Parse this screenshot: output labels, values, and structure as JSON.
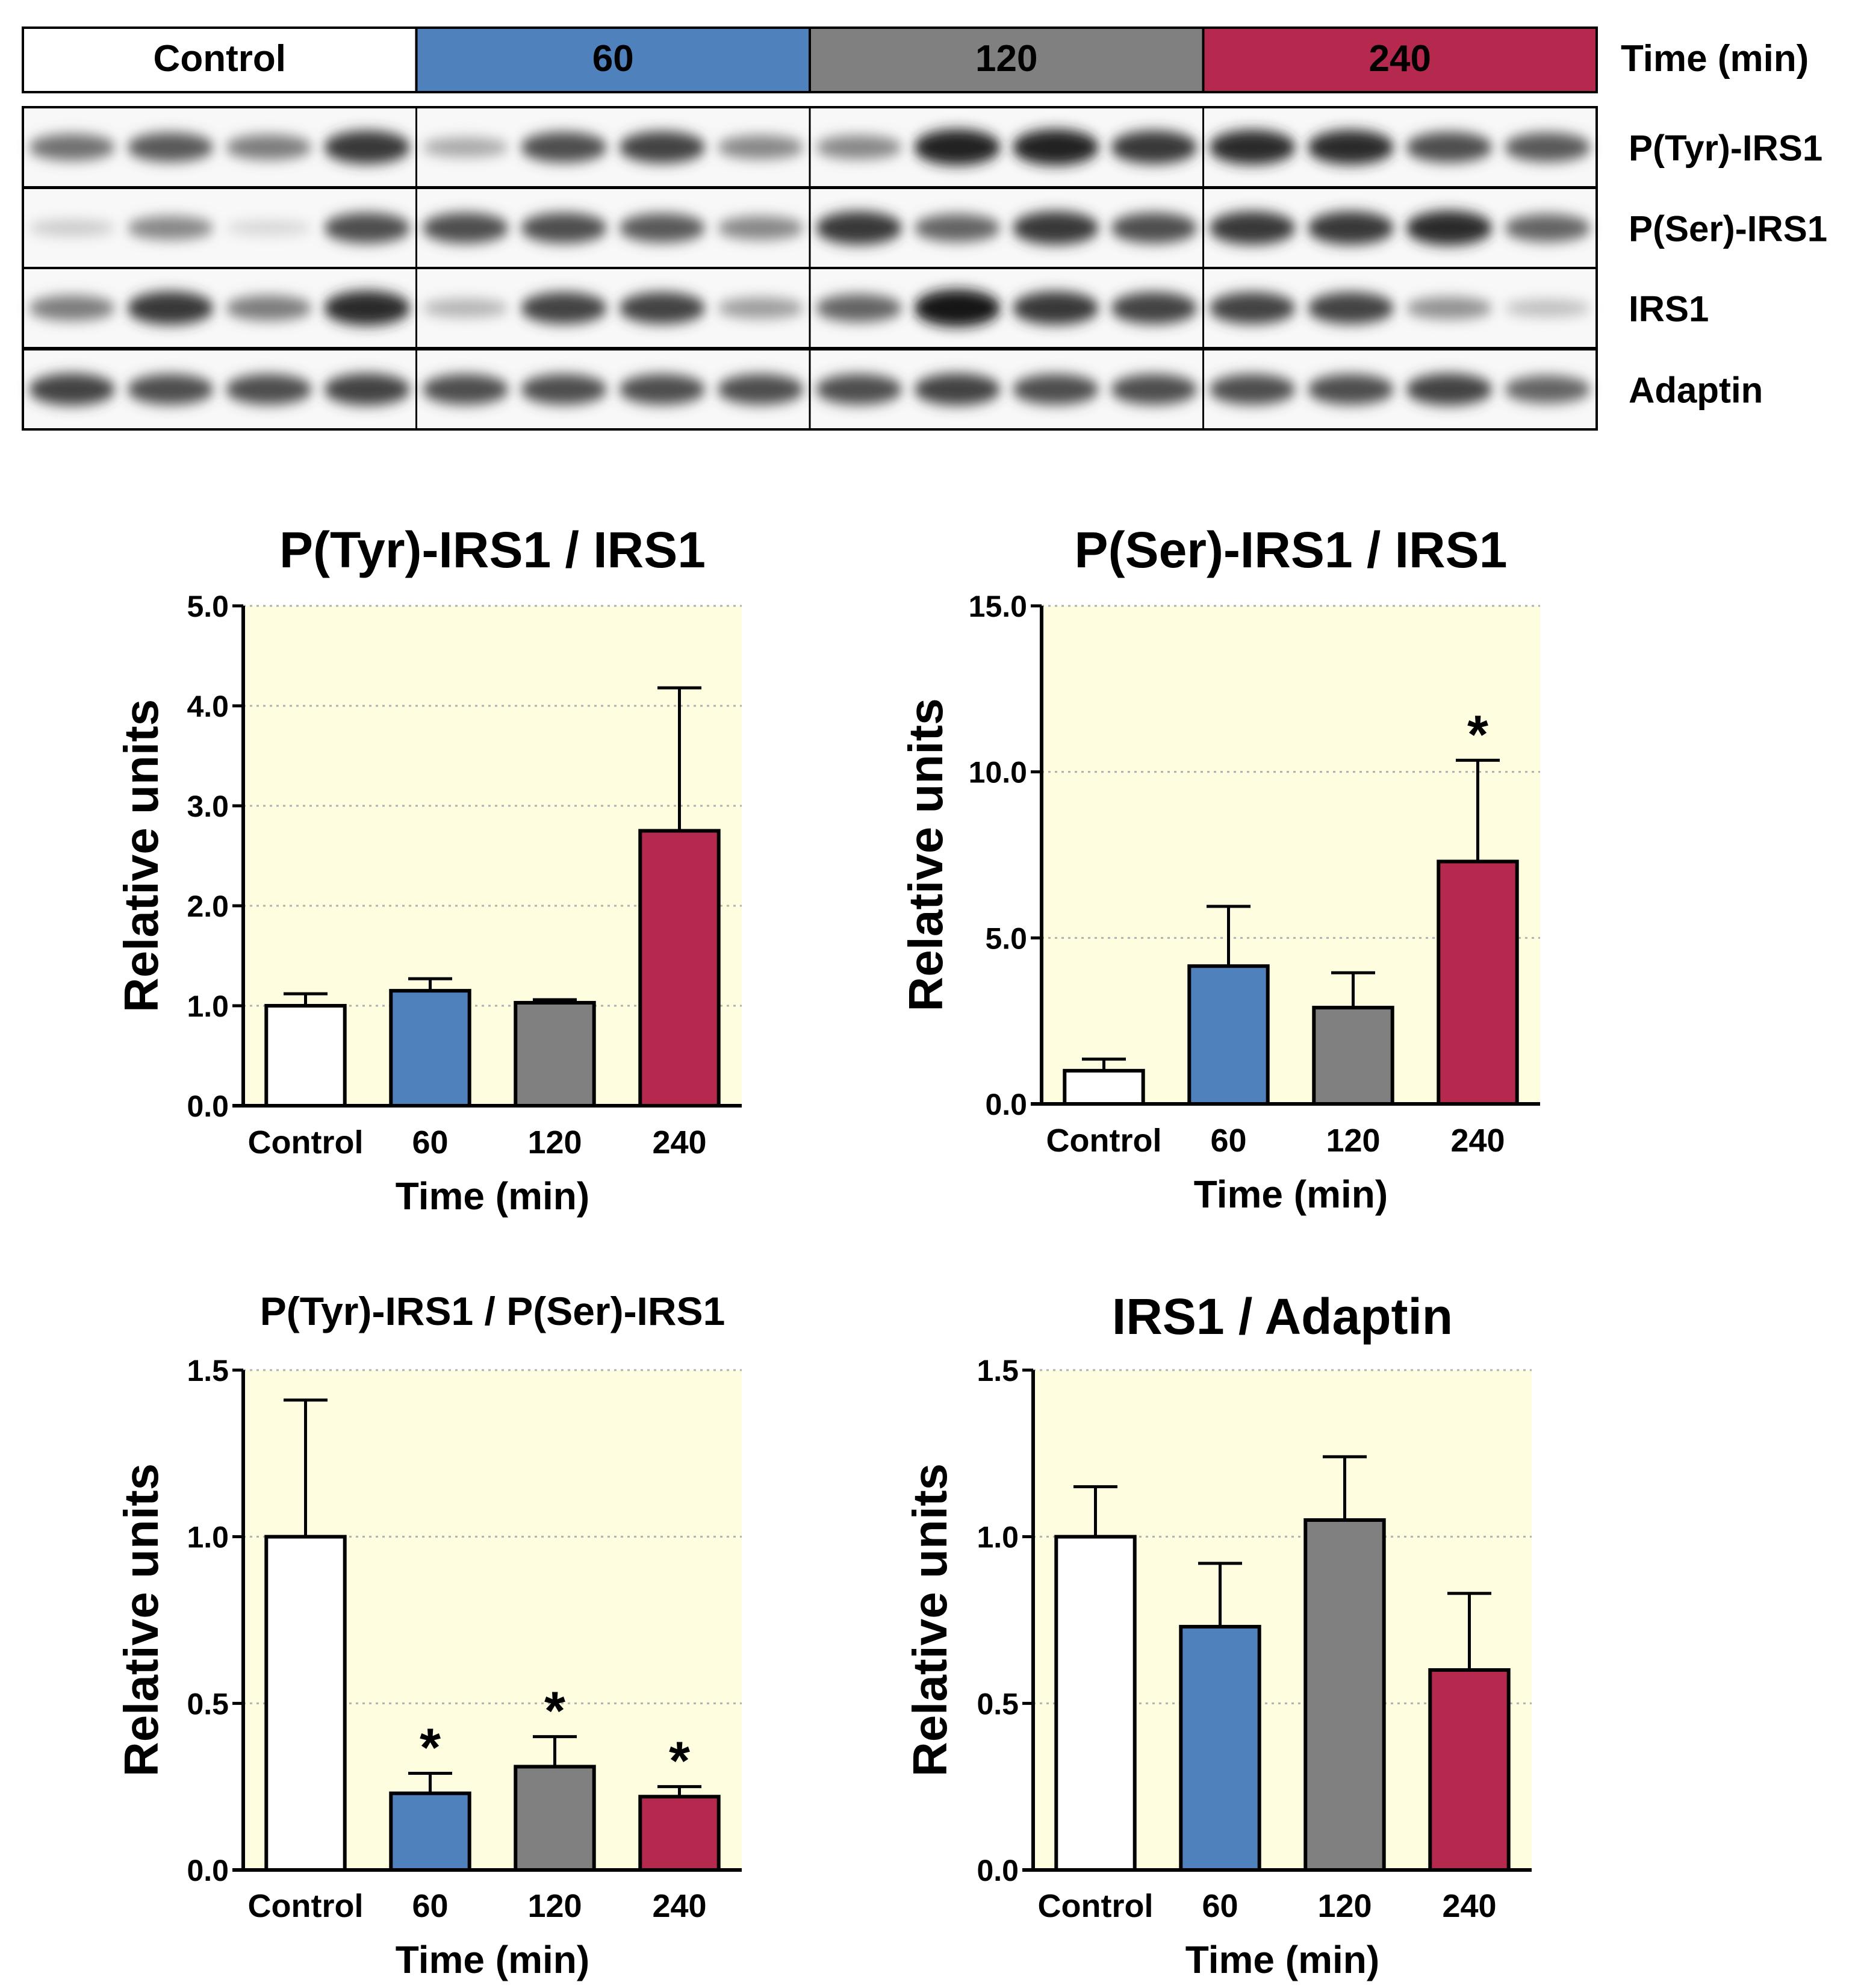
{
  "blot": {
    "groups": [
      {
        "label": "Control",
        "color": "#ffffff",
        "text_color": "#000000"
      },
      {
        "label": "60",
        "color": "#4f81bd",
        "text_color": "#000000"
      },
      {
        "label": "120",
        "color": "#808080",
        "text_color": "#000000"
      },
      {
        "label": "240",
        "color": "#b5294e",
        "text_color": "#000000"
      }
    ],
    "header_label": "Time (min)",
    "rows": [
      {
        "label": "P(Tyr)-IRS1",
        "intensity": [
          0.55,
          0.65,
          0.5,
          0.8,
          0.3,
          0.7,
          0.75,
          0.45,
          0.45,
          0.9,
          0.9,
          0.8,
          0.85,
          0.85,
          0.7,
          0.65
        ]
      },
      {
        "label": "P(Ser)-IRS1",
        "intensity": [
          0.15,
          0.45,
          0.1,
          0.7,
          0.7,
          0.7,
          0.65,
          0.45,
          0.8,
          0.6,
          0.8,
          0.7,
          0.8,
          0.8,
          0.85,
          0.6
        ]
      },
      {
        "label": "IRS1",
        "intensity": [
          0.5,
          0.8,
          0.5,
          0.85,
          0.25,
          0.75,
          0.75,
          0.35,
          0.6,
          0.95,
          0.8,
          0.75,
          0.75,
          0.75,
          0.4,
          0.2
        ]
      },
      {
        "label": "Adaptin",
        "intensity": [
          0.75,
          0.7,
          0.7,
          0.75,
          0.7,
          0.7,
          0.7,
          0.7,
          0.7,
          0.75,
          0.7,
          0.7,
          0.7,
          0.7,
          0.75,
          0.6
        ]
      }
    ]
  },
  "chart_data": [
    {
      "type": "bar",
      "title": "P(Tyr)-IRS1 / IRS1",
      "xlabel": "Time (min)",
      "ylabel": "Relative units",
      "categories": [
        "Control",
        "60",
        "120",
        "240"
      ],
      "values": [
        1.0,
        1.15,
        1.03,
        2.75
      ],
      "errors": [
        0.12,
        0.12,
        0.03,
        1.43
      ],
      "ylim": [
        0,
        5.0
      ],
      "yticks": [
        "0.0",
        "1.0",
        "2.0",
        "3.0",
        "4.0",
        "5.0"
      ],
      "significance": [
        "",
        "",
        "",
        ""
      ],
      "colors": [
        "#ffffff",
        "#4f81bd",
        "#808080",
        "#b5294e"
      ],
      "background": "#fefde0",
      "grid": "horizontal dotted"
    },
    {
      "type": "bar",
      "title": "P(Ser)-IRS1 / IRS1",
      "xlabel": "Time (min)",
      "ylabel": "Relative units",
      "categories": [
        "Control",
        "60",
        "120",
        "240"
      ],
      "values": [
        1.0,
        4.15,
        2.9,
        7.3
      ],
      "errors": [
        0.35,
        1.8,
        1.05,
        3.05
      ],
      "ylim": [
        0,
        15.0
      ],
      "yticks": [
        "0.0",
        "5.0",
        "10.0",
        "15.0"
      ],
      "significance": [
        "",
        "",
        "",
        "*"
      ],
      "colors": [
        "#ffffff",
        "#4f81bd",
        "#808080",
        "#b5294e"
      ],
      "background": "#fefde0",
      "grid": "horizontal dotted"
    },
    {
      "type": "bar",
      "title": "P(Tyr)-IRS1 / P(Ser)-IRS1",
      "xlabel": "Time (min)",
      "ylabel": "Relative units",
      "categories": [
        "Control",
        "60",
        "120",
        "240"
      ],
      "values": [
        1.0,
        0.23,
        0.31,
        0.22
      ],
      "errors": [
        0.41,
        0.06,
        0.09,
        0.03
      ],
      "ylim": [
        0,
        1.5
      ],
      "yticks": [
        "0.0",
        "0.5",
        "1.0",
        "1.5"
      ],
      "significance": [
        "",
        "*",
        "*",
        "*"
      ],
      "colors": [
        "#ffffff",
        "#4f81bd",
        "#808080",
        "#b5294e"
      ],
      "background": "#fefde0",
      "grid": "horizontal dotted"
    },
    {
      "type": "bar",
      "title": "IRS1 / Adaptin",
      "xlabel": "Time (min)",
      "ylabel": "Relative units",
      "categories": [
        "Control",
        "60",
        "120",
        "240"
      ],
      "values": [
        1.0,
        0.73,
        1.05,
        0.6
      ],
      "errors": [
        0.15,
        0.19,
        0.19,
        0.23
      ],
      "ylim": [
        0,
        1.5
      ],
      "yticks": [
        "0.0",
        "0.5",
        "1.0",
        "1.5"
      ],
      "significance": [
        "",
        "",
        "",
        ""
      ],
      "colors": [
        "#ffffff",
        "#4f81bd",
        "#808080",
        "#b5294e"
      ],
      "background": "#fefde0",
      "grid": "horizontal dotted"
    }
  ]
}
